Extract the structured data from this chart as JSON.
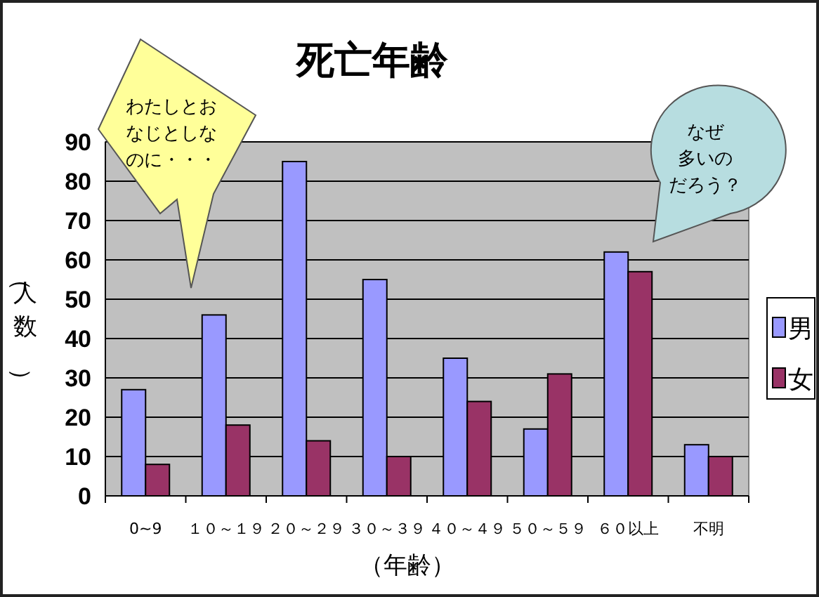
{
  "chart_data": {
    "type": "bar",
    "title": "死亡年齢",
    "xlabel": "（年齢）",
    "ylabel": "（人数）",
    "categories": [
      "0~9",
      "１０～１９",
      "２０～２９",
      "３０～３９",
      "４０～４９",
      "５０～５９",
      "６０以上",
      "不明"
    ],
    "series": [
      {
        "name": "男",
        "color": "#9999ff",
        "values": [
          27,
          46,
          85,
          55,
          35,
          17,
          62,
          13
        ]
      },
      {
        "name": "女",
        "color": "#993366",
        "values": [
          8,
          18,
          14,
          10,
          24,
          31,
          57,
          10
        ]
      }
    ],
    "ylim": [
      0,
      90
    ],
    "yticks": [
      0,
      10,
      20,
      30,
      40,
      50,
      60,
      70,
      80,
      90
    ],
    "grid": "y",
    "legend": "right",
    "annotations": [
      "わたしとおなじとしなのに・・・",
      "なぜ多いのだろう？"
    ]
  }
}
